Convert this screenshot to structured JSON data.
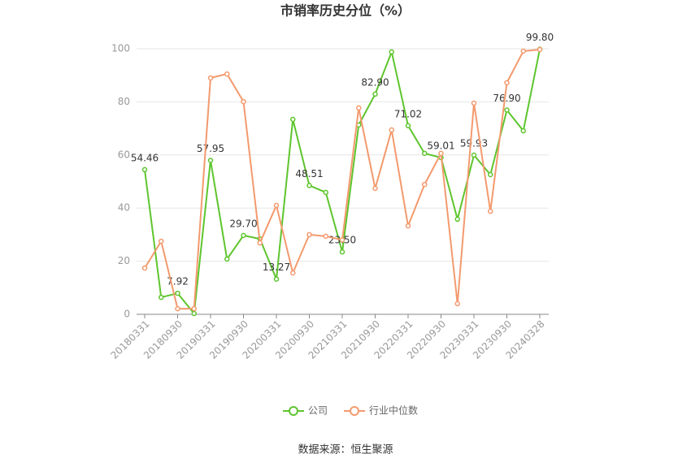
{
  "chart_data": {
    "type": "line",
    "title": "市销率历史分位（%）",
    "source": "数据来源：恒生聚源",
    "categories": [
      "20180331",
      null,
      "20180930",
      null,
      "20190331",
      null,
      "20190930",
      null,
      "20200331",
      null,
      "20200930",
      null,
      "20210331",
      null,
      "20210930",
      null,
      "20220331",
      null,
      "20220930",
      null,
      "20230331",
      null,
      "20230930",
      null,
      "20240328"
    ],
    "series": [
      {
        "name": "公司",
        "color": "#5ec52e",
        "values": [
          54.46,
          6.4,
          7.92,
          0.3,
          57.95,
          20.8,
          29.7,
          28.4,
          13.27,
          73.4,
          48.51,
          45.9,
          23.5,
          71.3,
          82.9,
          98.8,
          71.02,
          60.6,
          59.01,
          35.8,
          59.93,
          52.6,
          76.9,
          69.1,
          99.8
        ],
        "value_labels": [
          "54.46",
          null,
          "7.92",
          null,
          "57.95",
          null,
          "29.70",
          null,
          "13.27",
          null,
          "48.51",
          null,
          "23.50",
          null,
          "82.90",
          null,
          "71.02",
          null,
          "59.01",
          null,
          "59.93",
          null,
          "76.90",
          null,
          "99.80"
        ]
      },
      {
        "name": "行业中位数",
        "color": "#f39a6e",
        "values": [
          17.4,
          27.5,
          2.1,
          2.1,
          89.0,
          90.5,
          80.1,
          26.9,
          41.0,
          15.6,
          30.0,
          29.4,
          28.0,
          77.7,
          47.4,
          69.4,
          33.3,
          48.9,
          60.6,
          4.0,
          79.5,
          38.8,
          87.2,
          99.1,
          99.7
        ]
      }
    ],
    "ylim": [
      0,
      100
    ],
    "yticks": [
      0,
      20,
      40,
      60,
      80,
      100
    ],
    "grid": true
  }
}
